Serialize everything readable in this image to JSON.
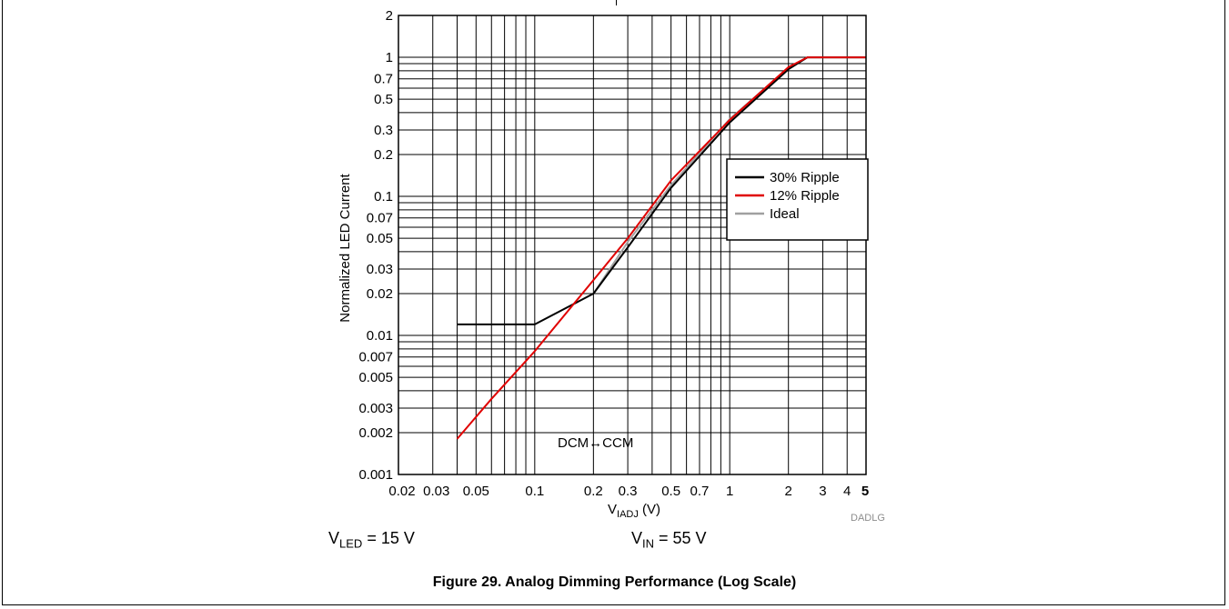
{
  "chart_data": {
    "type": "line",
    "xscale": "log",
    "yscale": "log",
    "xlim": [
      0.02,
      5
    ],
    "ylim": [
      0.001,
      2
    ],
    "x_ticks": [
      {
        "v": 0.02,
        "label": "0.02"
      },
      {
        "v": 0.03,
        "label": "0.03"
      },
      {
        "v": 0.05,
        "label": "0.05"
      },
      {
        "v": 0.1,
        "label": "0.1"
      },
      {
        "v": 0.2,
        "label": "0.2"
      },
      {
        "v": 0.3,
        "label": "0.3"
      },
      {
        "v": 0.5,
        "label": "0.5"
      },
      {
        "v": 0.7,
        "label": "0.7"
      },
      {
        "v": 1,
        "label": "1"
      },
      {
        "v": 2,
        "label": "2"
      },
      {
        "v": 3,
        "label": "3"
      },
      {
        "v": 4,
        "label": "4"
      },
      {
        "v": 5,
        "label": "5"
      }
    ],
    "y_ticks": [
      {
        "v": 0.001,
        "label": "0.001"
      },
      {
        "v": 0.002,
        "label": "0.002"
      },
      {
        "v": 0.003,
        "label": "0.003"
      },
      {
        "v": 0.005,
        "label": "0.005"
      },
      {
        "v": 0.007,
        "label": "0.007"
      },
      {
        "v": 0.01,
        "label": "0.01"
      },
      {
        "v": 0.02,
        "label": "0.02"
      },
      {
        "v": 0.03,
        "label": "0.03"
      },
      {
        "v": 0.05,
        "label": "0.05"
      },
      {
        "v": 0.07,
        "label": "0.07"
      },
      {
        "v": 0.1,
        "label": "0.1"
      },
      {
        "v": 0.2,
        "label": "0.2"
      },
      {
        "v": 0.3,
        "label": "0.3"
      },
      {
        "v": 0.5,
        "label": "0.5"
      },
      {
        "v": 0.7,
        "label": "0.7"
      },
      {
        "v": 1,
        "label": "1"
      },
      {
        "v": 2,
        "label": "2"
      }
    ],
    "x_grid": [
      0.02,
      0.03,
      0.04,
      0.05,
      0.06,
      0.07,
      0.08,
      0.09,
      0.1,
      0.2,
      0.3,
      0.4,
      0.5,
      0.6,
      0.7,
      0.8,
      0.9,
      1,
      2,
      3,
      4,
      5
    ],
    "y_grid": [
      0.001,
      0.002,
      0.003,
      0.004,
      0.005,
      0.006,
      0.007,
      0.008,
      0.009,
      0.01,
      0.02,
      0.03,
      0.04,
      0.05,
      0.06,
      0.07,
      0.08,
      0.09,
      0.1,
      0.2,
      0.3,
      0.4,
      0.5,
      0.6,
      0.7,
      0.8,
      0.9,
      1,
      2
    ],
    "grid": true,
    "xlabel_main": "V",
    "xlabel_sub": "IADJ",
    "xlabel_unit": " (V)",
    "ylabel": "Normalized LED Current",
    "legend_position": "right",
    "series": [
      {
        "name": "30% Ripple",
        "color": "#000000",
        "x": [
          0.04,
          0.1,
          0.2,
          0.3,
          0.5,
          1.0,
          2.0,
          2.5,
          5.0
        ],
        "y": [
          0.012,
          0.012,
          0.02,
          0.043,
          0.115,
          0.34,
          0.82,
          1.0,
          1.0
        ]
      },
      {
        "name": "12% Ripple",
        "color": "#e00000",
        "x": [
          0.04,
          0.06,
          0.1,
          0.2,
          0.3,
          0.5,
          1.0,
          2.0,
          2.5,
          5.0
        ],
        "y": [
          0.0018,
          0.0035,
          0.0077,
          0.025,
          0.05,
          0.13,
          0.355,
          0.85,
          1.0,
          1.0
        ]
      },
      {
        "name": "Ideal",
        "color": "#a0a0a0",
        "x": [
          0.2,
          0.3,
          0.5,
          1.0,
          2.0,
          2.5,
          5.0
        ],
        "y": [
          0.02,
          0.047,
          0.12,
          0.36,
          0.84,
          1.0,
          1.0
        ]
      }
    ],
    "annotation": "DCM↔CCM"
  },
  "conditions": {
    "vled_main": "V",
    "vled_sub": "LED",
    "vled_value": " = 15 V",
    "vin_main": "V",
    "vin_sub": "IN",
    "vin_value": " = 55 V"
  },
  "figure_code": "DADLG",
  "caption": "Figure 29. Analog Dimming Performance (Log Scale)"
}
